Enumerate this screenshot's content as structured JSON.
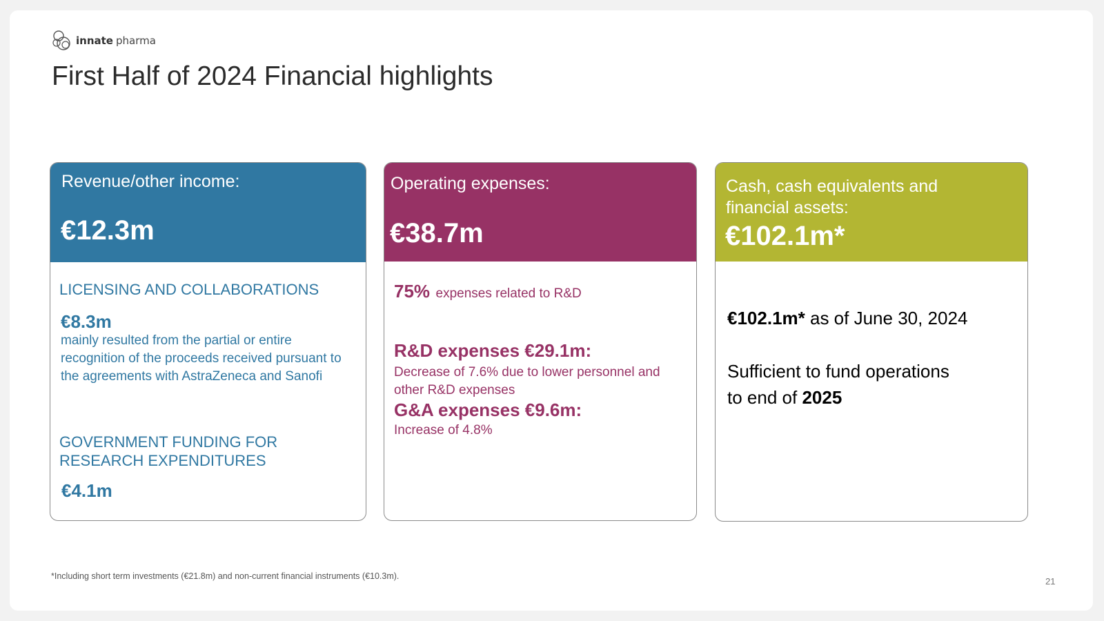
{
  "brand": {
    "logo_bold": "innate",
    "logo_light": "pharma"
  },
  "title": "First Half of 2024 Financial highlights",
  "colors": {
    "revenue": "#3078a2",
    "opex": "#973265",
    "cash": "#b3b633"
  },
  "revenue_card": {
    "header_label": "Revenue/other income:",
    "header_value": "€12.3m",
    "section1_title": "LICENSING AND COLLABORATIONS",
    "section1_value": "€8.3m",
    "section1_desc": "mainly resulted from  the partial or entire recognition of the proceeds received pursuant to the agreements with AstraZeneca and Sanofi",
    "section2_title": "GOVERNMENT FUNDING FOR RESEARCH EXPENDITURES",
    "section2_value": "€4.1m"
  },
  "opex_card": {
    "header_label": "Operating expenses:",
    "header_value": "€38.7m",
    "rd_share_value": "75%",
    "rd_share_text": "expenses related to R&D",
    "rd_title": "R&D expenses €29.1m:",
    "rd_desc": "Decrease of 7.6% due to lower personnel and other R&D expenses",
    "ga_title": "G&A expenses €9.6m:",
    "ga_desc": "Increase of 4.8%"
  },
  "cash_card": {
    "header_label": "Cash, cash equivalents and financial assets:",
    "header_value": "€102.1m*",
    "cash_value": "€102.1m*",
    "cash_date": "as of June 30, 2024",
    "fund_text_1": "Sufficient to fund operations",
    "fund_text_2": "to end of",
    "fund_year": "2025"
  },
  "footnote": "*Including short term investments (€21.8m) and non-current financial instruments (€10.3m).",
  "page_number": "21"
}
